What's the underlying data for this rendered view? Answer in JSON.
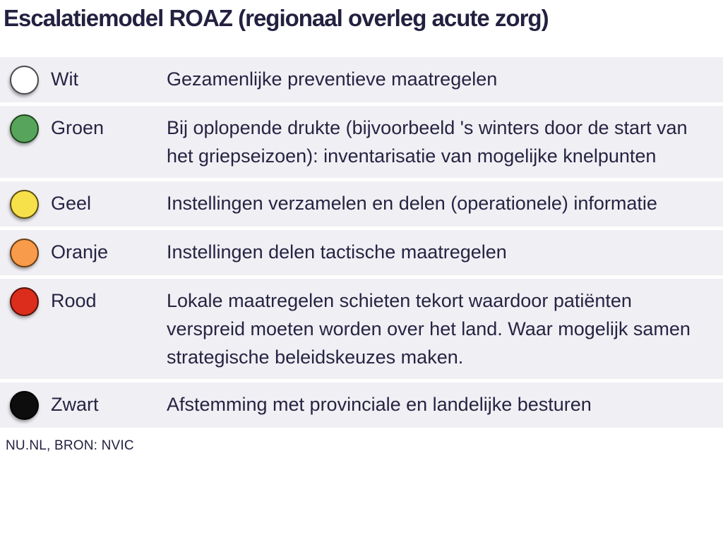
{
  "title": "Escalatiemodel ROAZ (regionaal overleg acute zorg)",
  "colors": {
    "text": "#262442",
    "row_background": "#f0eff4",
    "page_background": "#ffffff"
  },
  "rows": [
    {
      "label": "Wit",
      "color": "#ffffff",
      "border": "#4a4a4a",
      "description": "Gezamenlijke preventieve maatregelen"
    },
    {
      "label": "Groen",
      "color": "#57a55c",
      "border": "#20461f",
      "description": "Bij oplopende drukte (bijvoorbeeld 's winters door de start van het griepseizoen): inventarisatie van mogelijke knelpunten"
    },
    {
      "label": "Geel",
      "color": "#f7e14b",
      "border": "#5c4f12",
      "description": "Instellingen verzamelen en delen (operationele) informatie"
    },
    {
      "label": "Oranje",
      "color": "#f89b4a",
      "border": "#6b3d10",
      "description": "Instellingen delen tactische maatregelen"
    },
    {
      "label": "Rood",
      "color": "#dc2d1c",
      "border": "#55100a",
      "description": "Lokale maatregelen schieten tekort waardoor patiënten verspreid moeten worden over het land. Waar mogelijk samen strategische beleidskeuzes maken."
    },
    {
      "label": "Zwart",
      "color": "#0d0d0d",
      "border": "#000000",
      "description": "Afstemming met provinciale en landelijke besturen"
    }
  ],
  "footer": {
    "credit": "NU.NL, BRON: NVIC"
  }
}
